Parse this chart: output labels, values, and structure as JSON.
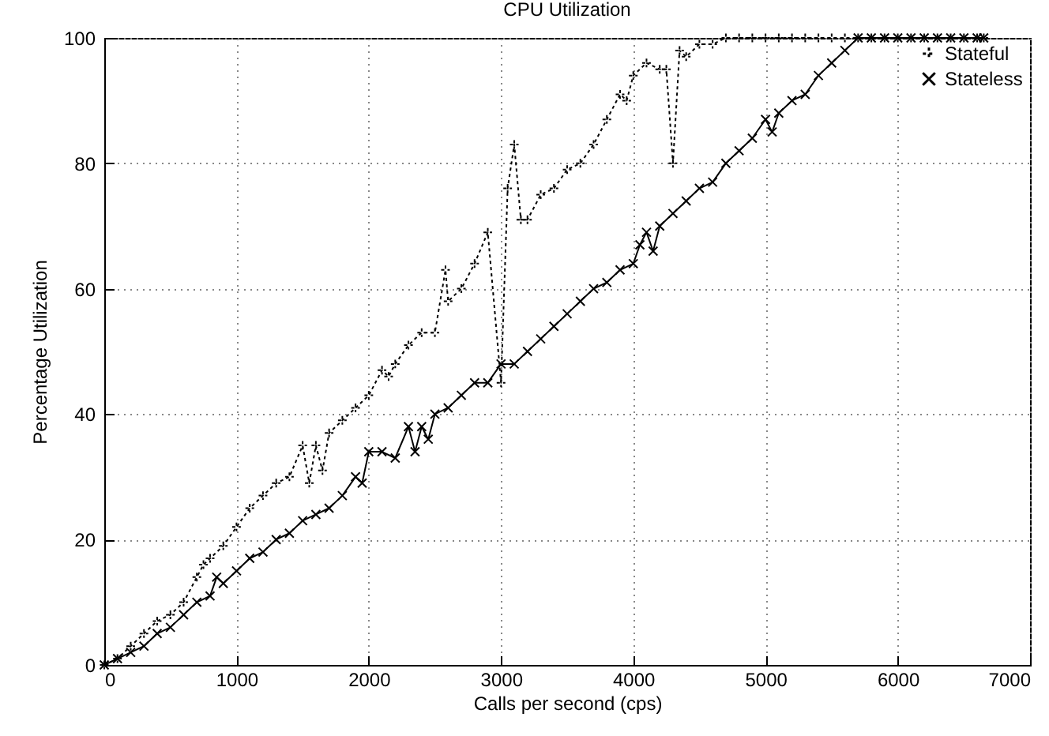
{
  "chart_data": {
    "type": "line",
    "title": "CPU Utilization",
    "xlabel": "Calls per second (cps)",
    "ylabel": "Percentage Utilization",
    "xlim": [
      0,
      7000
    ],
    "xticks": [
      0,
      1000,
      2000,
      3000,
      4000,
      5000,
      6000,
      7000
    ],
    "ylim": [
      0,
      100
    ],
    "yticks": [
      0,
      20,
      40,
      60,
      80,
      100
    ],
    "grid": true,
    "legend": "top right",
    "series": [
      {
        "name": "Stateful",
        "color": "#000000",
        "line_style": "dotted",
        "marker": "cross",
        "x": [
          0,
          100,
          200,
          300,
          400,
          500,
          600,
          700,
          750,
          800,
          900,
          1000,
          1100,
          1200,
          1300,
          1400,
          1500,
          1550,
          1600,
          1650,
          1700,
          1800,
          1900,
          2000,
          2100,
          2150,
          2200,
          2300,
          2400,
          2500,
          2580,
          2600,
          2700,
          2800,
          2900,
          3000,
          3050,
          3100,
          3150,
          3200,
          3300,
          3400,
          3500,
          3600,
          3700,
          3800,
          3900,
          3950,
          4000,
          4100,
          4200,
          4250,
          4300,
          4350,
          4400,
          4500,
          4600,
          4700,
          4800,
          4900,
          5000,
          5100,
          5200,
          5300,
          5400,
          5500,
          5600,
          5700,
          5800,
          5900,
          6000,
          6100,
          6200,
          6300,
          6400,
          6500,
          6600,
          6650
        ],
        "values": [
          0,
          1,
          3,
          5,
          7,
          8,
          10,
          14,
          16,
          17,
          19,
          22,
          25,
          27,
          29,
          30,
          35,
          29,
          35,
          31,
          37,
          39,
          41,
          43,
          47,
          46,
          48,
          51,
          53,
          53,
          63,
          58,
          60,
          64,
          69,
          45,
          76,
          83,
          71,
          71,
          75,
          76,
          79,
          80,
          83,
          87,
          91,
          90,
          94,
          96,
          95,
          95,
          80,
          98,
          97,
          99,
          99,
          100,
          100,
          100,
          100,
          100,
          100,
          100,
          100,
          100,
          100,
          100,
          100,
          100,
          100,
          100,
          100,
          100,
          100,
          100,
          100,
          100
        ]
      },
      {
        "name": "Stateless",
        "color": "#000000",
        "line_style": "solid",
        "marker": "cross",
        "x": [
          0,
          100,
          200,
          300,
          400,
          500,
          600,
          700,
          800,
          850,
          900,
          1000,
          1100,
          1200,
          1300,
          1400,
          1500,
          1600,
          1700,
          1800,
          1900,
          1950,
          2000,
          2100,
          2200,
          2300,
          2350,
          2400,
          2450,
          2500,
          2600,
          2700,
          2800,
          2900,
          3000,
          3100,
          3200,
          3300,
          3400,
          3500,
          3600,
          3700,
          3800,
          3900,
          4000,
          4050,
          4100,
          4150,
          4200,
          4300,
          4400,
          4500,
          4600,
          4700,
          4800,
          4900,
          5000,
          5050,
          5100,
          5200,
          5300,
          5400,
          5500,
          5600,
          5700,
          5800,
          5900,
          6000,
          6100,
          6200,
          6300,
          6400,
          6500,
          6600,
          6650
        ],
        "values": [
          0,
          1,
          2,
          3,
          5,
          6,
          8,
          10,
          11,
          14,
          13,
          15,
          17,
          18,
          20,
          21,
          23,
          24,
          25,
          27,
          30,
          29,
          34,
          34,
          33,
          38,
          34,
          38,
          36,
          40,
          41,
          43,
          45,
          45,
          48,
          48,
          50,
          52,
          54,
          56,
          58,
          60,
          61,
          63,
          64,
          67,
          69,
          66,
          70,
          72,
          74,
          76,
          77,
          80,
          82,
          84,
          87,
          85,
          88,
          90,
          91,
          94,
          96,
          98,
          100,
          100,
          100,
          100,
          100,
          100,
          100,
          100,
          100,
          100,
          100
        ]
      }
    ]
  }
}
